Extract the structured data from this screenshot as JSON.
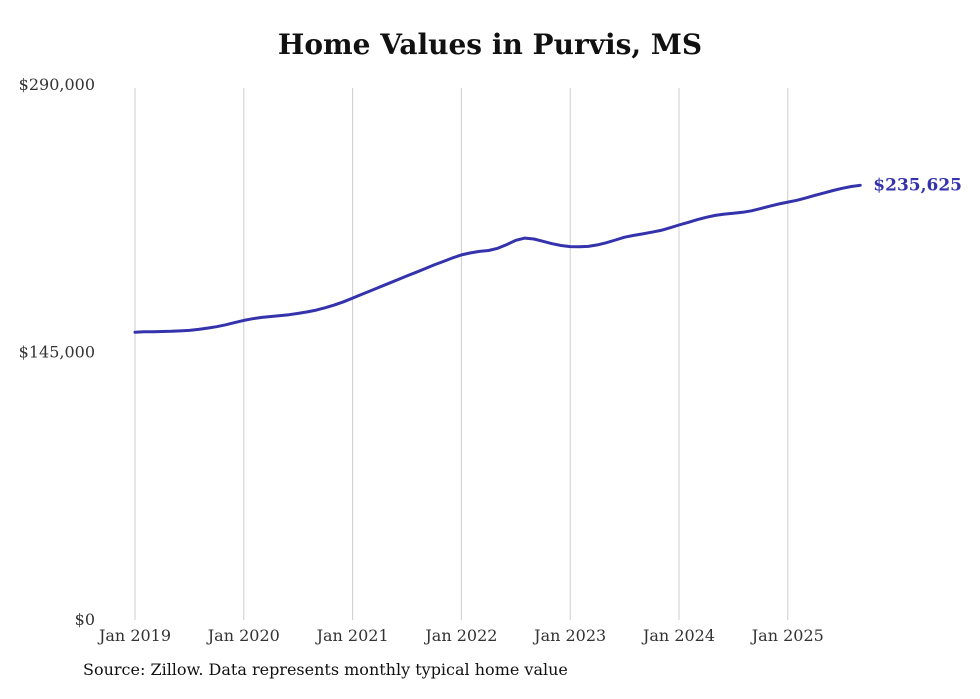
{
  "title": "Home Values in Purvis, MS",
  "source_note": "Source: Zillow. Data represents monthly typical home value",
  "end_label": "$235,625",
  "colors": {
    "line": "#3533ac",
    "grid": "#cccccc",
    "text": "#333333",
    "title": "#111111"
  },
  "chart_data": {
    "type": "line",
    "title": "Home Values in Purvis, MS",
    "xlabel": "",
    "ylabel": "",
    "frequency": "monthly",
    "start": "2019-01",
    "end": "2025-09",
    "x_tick_labels": [
      "Jan 2019",
      "Jan 2020",
      "Jan 2021",
      "Jan 2022",
      "Jan 2023",
      "Jan 2024",
      "Jan 2025"
    ],
    "y_ticks": [
      0,
      145000,
      290000
    ],
    "y_tick_labels": [
      "$0",
      "$145,000",
      "$290,000"
    ],
    "ylim": [
      0,
      290000
    ],
    "grid": "vertical-only",
    "legend": "none",
    "final_value": 235625,
    "series": [
      {
        "name": "Typical home value (USD)",
        "values": [
          156000,
          156200,
          156300,
          156400,
          156500,
          156700,
          157000,
          157500,
          158200,
          159000,
          160000,
          161200,
          162400,
          163300,
          164000,
          164500,
          165000,
          165500,
          166200,
          167000,
          168000,
          169300,
          170800,
          172500,
          174500,
          176500,
          178500,
          180500,
          182500,
          184500,
          186500,
          188500,
          190500,
          192500,
          194300,
          196200,
          197900,
          199000,
          199800,
          200300,
          201500,
          203500,
          205800,
          207000,
          206500,
          205300,
          204000,
          203000,
          202400,
          202300,
          202500,
          203300,
          204500,
          206000,
          207500,
          208500,
          209300,
          210200,
          211200,
          212600,
          214100,
          215500,
          217000,
          218300,
          219300,
          220000,
          220500,
          221000,
          221800,
          223000,
          224300,
          225500,
          226500,
          227500,
          228800,
          230200,
          231500,
          232800,
          234000,
          235000,
          235625
        ]
      }
    ]
  }
}
